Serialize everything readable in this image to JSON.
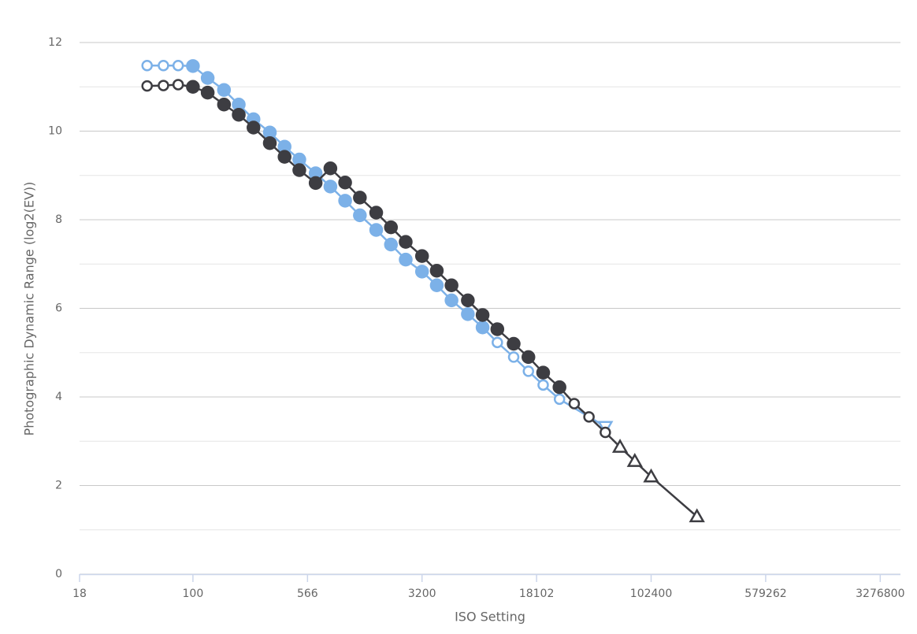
{
  "chart_data": {
    "type": "line",
    "x_label": "ISO Setting",
    "y_label": "Photographic Dynamic Range (log2(EV))",
    "log_x": true,
    "xlim": [
      18,
      4450000
    ],
    "xticks": [
      18,
      100,
      566,
      3200,
      18102,
      102400,
      579262,
      3276800
    ],
    "ylim": [
      0,
      12
    ],
    "yticks": [
      0,
      2,
      4,
      6,
      8,
      10,
      12
    ],
    "minor_yticks": [
      1,
      3,
      5,
      7,
      9,
      11
    ],
    "grid": true,
    "series": [
      {
        "color": "#7cb1e8",
        "x": [
          50,
          64,
          80,
          100,
          125,
          160,
          200,
          250,
          320,
          400,
          500,
          640,
          800,
          1000,
          1250,
          1600,
          2000,
          2500,
          3200,
          4000,
          5000,
          6400,
          8000,
          10000,
          12800,
          16000,
          20000,
          25600,
          51200
        ],
        "values": [
          11.48,
          11.48,
          11.48,
          11.47,
          11.2,
          10.93,
          10.6,
          10.27,
          9.97,
          9.65,
          9.36,
          9.05,
          8.75,
          8.43,
          8.1,
          7.77,
          7.44,
          7.1,
          6.83,
          6.52,
          6.18,
          5.87,
          5.57,
          5.23,
          4.9,
          4.58,
          4.27,
          3.95,
          3.33
        ],
        "markers": [
          "open",
          "open",
          "open",
          "filled",
          "filled",
          "filled",
          "filled",
          "filled",
          "filled",
          "filled",
          "filled",
          "filled",
          "filled",
          "filled",
          "filled",
          "filled",
          "filled",
          "filled",
          "filled",
          "filled",
          "filled",
          "filled",
          "filled",
          "open",
          "open",
          "open",
          "open",
          "open",
          "triangle-down"
        ]
      },
      {
        "color": "#3d3d42",
        "x": [
          50,
          64,
          80,
          100,
          125,
          160,
          200,
          250,
          320,
          400,
          500,
          640,
          800,
          1000,
          1250,
          1600,
          2000,
          2500,
          3200,
          4000,
          5000,
          6400,
          8000,
          10000,
          12800,
          16000,
          20000,
          25600,
          32000,
          40000,
          51200,
          64000,
          80000,
          102400,
          204800
        ],
        "values": [
          11.02,
          11.03,
          11.05,
          11.0,
          10.87,
          10.6,
          10.37,
          10.08,
          9.73,
          9.42,
          9.12,
          8.83,
          9.16,
          8.84,
          8.5,
          8.16,
          7.83,
          7.5,
          7.18,
          6.85,
          6.52,
          6.18,
          5.85,
          5.53,
          5.2,
          4.9,
          4.55,
          4.22,
          3.85,
          3.55,
          3.2,
          2.87,
          2.55,
          2.2,
          1.3
        ],
        "markers": [
          "open",
          "open",
          "open",
          "filled",
          "filled",
          "filled",
          "filled",
          "filled",
          "filled",
          "filled",
          "filled",
          "filled",
          "filled",
          "filled",
          "filled",
          "filled",
          "filled",
          "filled",
          "filled",
          "filled",
          "filled",
          "filled",
          "filled",
          "filled",
          "filled",
          "filled",
          "filled",
          "filled",
          "open",
          "open",
          "open",
          "triangle",
          "triangle",
          "triangle",
          "triangle"
        ]
      }
    ]
  }
}
